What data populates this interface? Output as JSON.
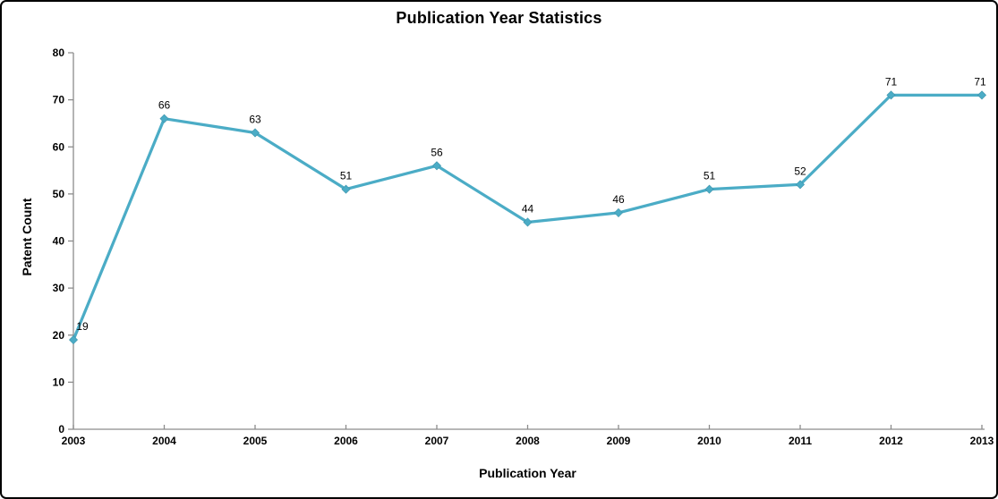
{
  "chart_data": {
    "type": "line",
    "title": "Publication Year Statistics",
    "xlabel": "Publication Year",
    "ylabel": "Patent Count",
    "categories": [
      "2003",
      "2004",
      "2005",
      "2006",
      "2007",
      "2008",
      "2009",
      "2010",
      "2011",
      "2012",
      "2013"
    ],
    "series": [
      {
        "name": "Patent Count",
        "values": [
          19,
          66,
          63,
          51,
          56,
          44,
          46,
          51,
          52,
          71,
          71
        ]
      }
    ],
    "data_labels": [
      19,
      66,
      63,
      51,
      56,
      44,
      46,
      51,
      52,
      71,
      71
    ],
    "ylim": [
      0,
      80
    ],
    "ytick_step": 10,
    "ytick_labels": [
      "0",
      "10",
      "20",
      "30",
      "40",
      "50",
      "60",
      "70",
      "80"
    ],
    "grid": false,
    "legend_position": "none",
    "marker_shape": "diamond",
    "colors": {
      "line": "#4BACC6",
      "marker_fill": "#4BACC6",
      "marker_edge": "#3D93AB",
      "axis_line": "#8C8C8C",
      "text": "#000000",
      "background": "#FFFFFF",
      "frame_border": "#000000"
    }
  }
}
